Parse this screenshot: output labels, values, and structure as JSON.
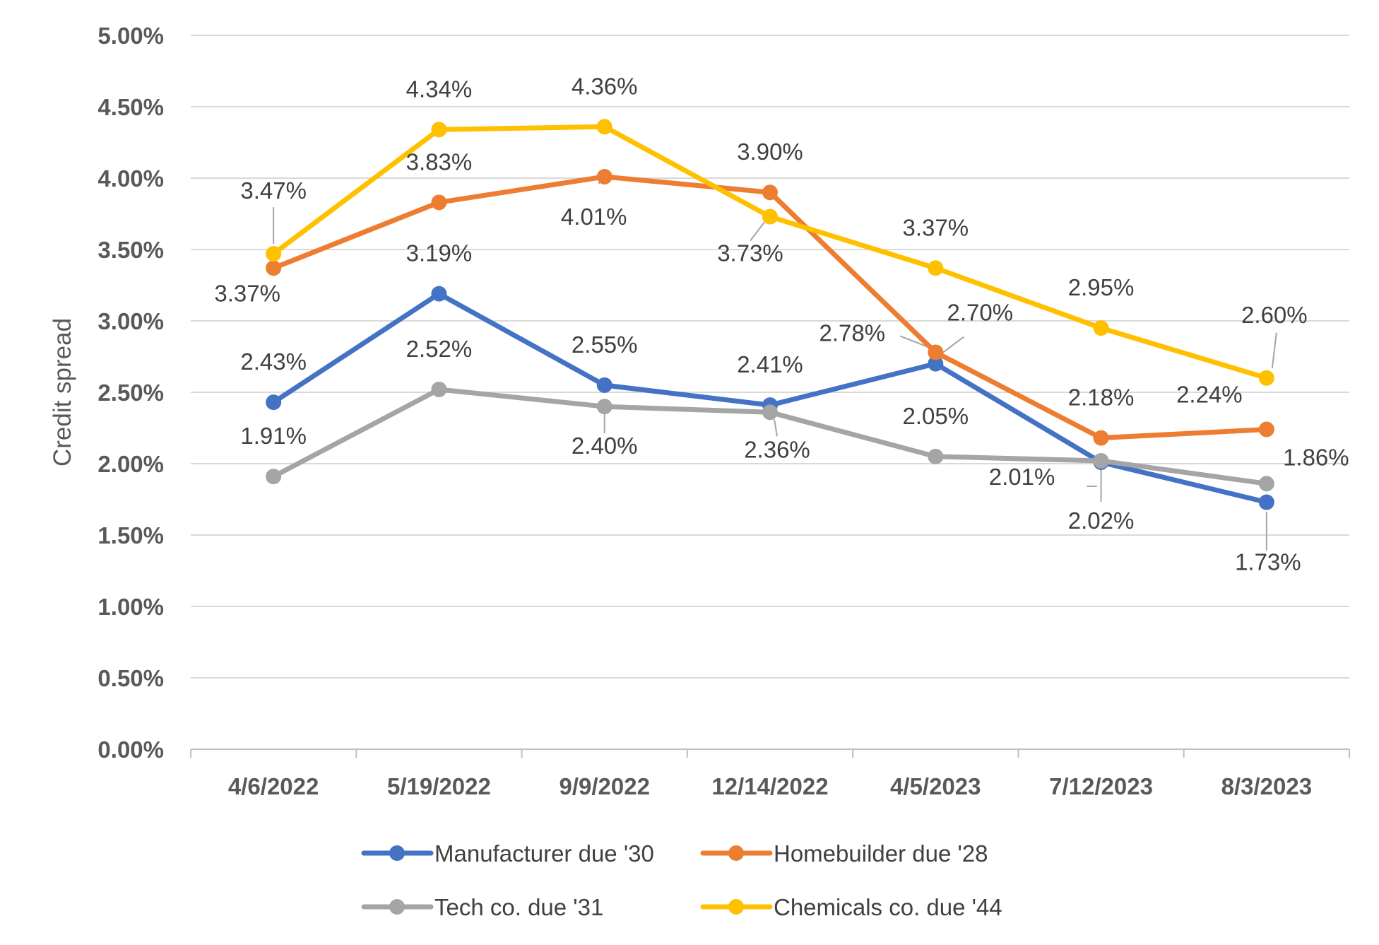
{
  "chart_data": {
    "type": "line",
    "categories": [
      "4/6/2022",
      "5/19/2022",
      "9/9/2022",
      "12/14/2022",
      "4/5/2023",
      "7/12/2023",
      "8/3/2023"
    ],
    "ylabel": "Credit spread",
    "ylim": [
      0,
      5
    ],
    "yticks": [
      "0.00%",
      "0.50%",
      "1.00%",
      "1.50%",
      "2.00%",
      "2.50%",
      "3.00%",
      "3.50%",
      "4.00%",
      "4.50%",
      "5.00%"
    ],
    "grid": true,
    "legend_position": "bottom",
    "series": [
      {
        "name": "Manufacturer due '30",
        "color": "#4472C4",
        "values": [
          2.43,
          3.19,
          2.55,
          2.41,
          2.7,
          2.01,
          1.73
        ],
        "labels": [
          "2.43%",
          "3.19%",
          "2.55%",
          "2.41%",
          "2.70%",
          "2.01%",
          "1.73%"
        ]
      },
      {
        "name": "Homebuilder due '28",
        "color": "#ED7D31",
        "values": [
          3.37,
          3.83,
          4.01,
          3.9,
          2.78,
          2.18,
          2.24
        ],
        "labels": [
          "3.37%",
          "3.83%",
          "4.01%",
          "3.90%",
          "2.78%",
          "2.18%",
          "2.24%"
        ]
      },
      {
        "name": "Tech co. due '31",
        "color": "#A5A5A5",
        "values": [
          1.91,
          2.52,
          2.4,
          2.36,
          2.05,
          2.02,
          1.86
        ],
        "labels": [
          "1.91%",
          "2.52%",
          "2.40%",
          "2.36%",
          "2.05%",
          "2.02%",
          "1.86%"
        ]
      },
      {
        "name": "Chemicals co. due '44",
        "color": "#FFC000",
        "values": [
          3.47,
          4.34,
          4.36,
          3.73,
          3.37,
          2.95,
          2.6
        ],
        "labels": [
          "3.47%",
          "4.34%",
          "4.36%",
          "3.73%",
          "3.37%",
          "2.95%",
          "2.60%"
        ]
      }
    ]
  }
}
